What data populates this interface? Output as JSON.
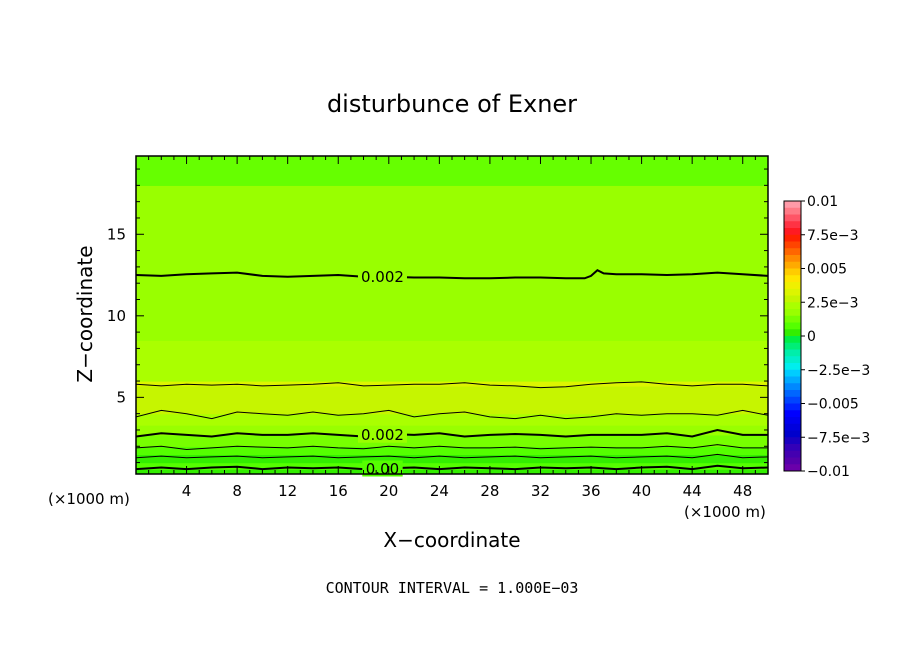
{
  "chart_data": {
    "type": "heatmap",
    "title": "disturbunce of Exner",
    "xlabel": "X−coordinate",
    "ylabel": "Z−coordinate",
    "x_unit": "(×1000 m)",
    "y_unit": "(×1000 m)",
    "xlim": [
      0,
      50
    ],
    "ylim": [
      0.3,
      19.8
    ],
    "x_ticks": [
      4,
      8,
      12,
      16,
      20,
      24,
      28,
      32,
      36,
      40,
      44,
      48
    ],
    "x_tick_labels": [
      "4",
      "8",
      "12",
      "16",
      "20",
      "24",
      "28",
      "32",
      "36",
      "40",
      "44",
      "48"
    ],
    "y_ticks": [
      5,
      10,
      15
    ],
    "y_tick_labels": [
      "5",
      "10",
      "15"
    ],
    "footnote": "CONTOUR INTERVAL = 1.000E−03",
    "colorbar": {
      "min": -0.01,
      "max": 0.01,
      "labels": [
        {
          "value": 0.01,
          "text": "0.01"
        },
        {
          "value": 0.0075,
          "text": "7.5e−3"
        },
        {
          "value": 0.005,
          "text": "0.005"
        },
        {
          "value": 0.0025,
          "text": "2.5e−3"
        },
        {
          "value": 0,
          "text": "0"
        },
        {
          "value": -0.0025,
          "text": "−2.5e−3"
        },
        {
          "value": -0.005,
          "text": "−0.005"
        },
        {
          "value": -0.0075,
          "text": "−7.5e−3"
        },
        {
          "value": -0.01,
          "text": "−0.01"
        }
      ],
      "levels": [
        {
          "from": 0.0095,
          "to": 0.01,
          "color": "#ff9aa8"
        },
        {
          "from": 0.009,
          "to": 0.0095,
          "color": "#ff7a86"
        },
        {
          "from": 0.0085,
          "to": 0.009,
          "color": "#ff5566"
        },
        {
          "from": 0.008,
          "to": 0.0085,
          "color": "#ff3344"
        },
        {
          "from": 0.0075,
          "to": 0.008,
          "color": "#ff1a22"
        },
        {
          "from": 0.007,
          "to": 0.0075,
          "color": "#ff2200"
        },
        {
          "from": 0.0065,
          "to": 0.007,
          "color": "#ff4400"
        },
        {
          "from": 0.006,
          "to": 0.0065,
          "color": "#ff6600"
        },
        {
          "from": 0.0055,
          "to": 0.006,
          "color": "#ff8a00"
        },
        {
          "from": 0.005,
          "to": 0.0055,
          "color": "#ffaa00"
        },
        {
          "from": 0.0045,
          "to": 0.005,
          "color": "#ffcc00"
        },
        {
          "from": 0.004,
          "to": 0.0045,
          "color": "#ffe600"
        },
        {
          "from": 0.0035,
          "to": 0.004,
          "color": "#f0f000"
        },
        {
          "from": 0.003,
          "to": 0.0035,
          "color": "#ddf500"
        },
        {
          "from": 0.0025,
          "to": 0.003,
          "color": "#c6f500"
        },
        {
          "from": 0.002,
          "to": 0.0025,
          "color": "#aaff00"
        },
        {
          "from": 0.0015,
          "to": 0.002,
          "color": "#99ff00"
        },
        {
          "from": 0.001,
          "to": 0.0015,
          "color": "#77ff00"
        },
        {
          "from": 0.0005,
          "to": 0.001,
          "color": "#55ff00"
        },
        {
          "from": 0,
          "to": 0.0005,
          "color": "#33ee00"
        },
        {
          "from": -0.0005,
          "to": 0,
          "color": "#00ee44"
        },
        {
          "from": -0.001,
          "to": -0.0005,
          "color": "#00ee77"
        },
        {
          "from": -0.0015,
          "to": -0.001,
          "color": "#00eeaa"
        },
        {
          "from": -0.002,
          "to": -0.0015,
          "color": "#00eecc"
        },
        {
          "from": -0.0025,
          "to": -0.002,
          "color": "#00eeee"
        },
        {
          "from": -0.003,
          "to": -0.0025,
          "color": "#00ccff"
        },
        {
          "from": -0.0035,
          "to": -0.003,
          "color": "#00aaff"
        },
        {
          "from": -0.004,
          "to": -0.0035,
          "color": "#0088ff"
        },
        {
          "from": -0.0045,
          "to": -0.004,
          "color": "#0066ff"
        },
        {
          "from": -0.005,
          "to": -0.0045,
          "color": "#0044ff"
        },
        {
          "from": -0.0055,
          "to": -0.005,
          "color": "#0022ff"
        },
        {
          "from": -0.006,
          "to": -0.0055,
          "color": "#0000ff"
        },
        {
          "from": -0.0065,
          "to": -0.006,
          "color": "#0000ee"
        },
        {
          "from": -0.007,
          "to": -0.0065,
          "color": "#0000dd"
        },
        {
          "from": -0.0075,
          "to": -0.007,
          "color": "#0000cc"
        },
        {
          "from": -0.008,
          "to": -0.0075,
          "color": "#1a00c0"
        },
        {
          "from": -0.0085,
          "to": -0.008,
          "color": "#3300b8"
        },
        {
          "from": -0.009,
          "to": -0.0085,
          "color": "#4400b0"
        },
        {
          "from": -0.0095,
          "to": -0.009,
          "color": "#5500aa"
        },
        {
          "from": -0.01,
          "to": -0.0095,
          "color": "#6a00aa"
        }
      ]
    },
    "bands": [
      {
        "z_from": 0.3,
        "z_to": 0.6,
        "color": "#33ee00"
      },
      {
        "z_from": 0.6,
        "z_to": 1.0,
        "color": "#55ff00"
      },
      {
        "z_from": 1.0,
        "z_to": 1.5,
        "color": "#33ee00"
      },
      {
        "z_from": 1.5,
        "z_to": 2.0,
        "color": "#55ff00"
      },
      {
        "z_from": 2.0,
        "z_to": 2.7,
        "color": "#77ff00"
      },
      {
        "z_from": 2.7,
        "z_to": 3.3,
        "color": "#99ff00"
      },
      {
        "z_from": 3.3,
        "z_to": 4.0,
        "color": "#aaff00"
      },
      {
        "z_from": 4.0,
        "z_to": 5.7,
        "color": "#c6f500"
      },
      {
        "z_from": 5.7,
        "z_to": 6.0,
        "color": "#ddf500"
      },
      {
        "z_from": 6.0,
        "z_to": 8.5,
        "color": "#aaff00"
      },
      {
        "z_from": 8.5,
        "z_to": 18.0,
        "color": "#99ff00"
      },
      {
        "z_from": 18.0,
        "z_to": 19.8,
        "color": "#66ff00"
      }
    ],
    "contours": [
      {
        "value": 0.002,
        "thick": true,
        "label": "0.002",
        "label_x": 19.5,
        "x": [
          0,
          2,
          4,
          6,
          8,
          10,
          12,
          14,
          16,
          18,
          20,
          22,
          24,
          26,
          28,
          30,
          32,
          34,
          35.5,
          36,
          36.5,
          37,
          38,
          40,
          42,
          44,
          46,
          48,
          50
        ],
        "z": [
          12.5,
          12.45,
          12.55,
          12.6,
          12.65,
          12.45,
          12.4,
          12.45,
          12.5,
          12.4,
          12.4,
          12.35,
          12.35,
          12.3,
          12.3,
          12.35,
          12.35,
          12.3,
          12.3,
          12.45,
          12.8,
          12.6,
          12.55,
          12.55,
          12.5,
          12.55,
          12.65,
          12.55,
          12.45
        ]
      },
      {
        "value": 0.0025,
        "thick": false,
        "label": "",
        "label_x": null,
        "x": [
          0,
          2,
          4,
          6,
          8,
          10,
          12,
          14,
          16,
          18,
          20,
          22,
          24,
          26,
          28,
          30,
          32,
          34,
          36,
          38,
          40,
          42,
          44,
          46,
          48,
          50
        ],
        "z": [
          5.8,
          5.7,
          5.8,
          5.75,
          5.8,
          5.7,
          5.75,
          5.8,
          5.9,
          5.7,
          5.75,
          5.8,
          5.8,
          5.9,
          5.75,
          5.7,
          5.6,
          5.65,
          5.8,
          5.9,
          5.95,
          5.8,
          5.7,
          5.8,
          5.8,
          5.7
        ]
      },
      {
        "value": 0.0025,
        "thick": false,
        "label": "",
        "label_x": null,
        "x": [
          0,
          2,
          4,
          6,
          8,
          10,
          12,
          14,
          16,
          18,
          20,
          22,
          24,
          26,
          28,
          30,
          32,
          34,
          36,
          38,
          40,
          42,
          44,
          46,
          48,
          50
        ],
        "z": [
          3.8,
          4.2,
          4.0,
          3.7,
          4.1,
          4.0,
          3.9,
          4.1,
          3.9,
          4.0,
          4.2,
          3.8,
          4.0,
          4.1,
          3.8,
          3.7,
          3.9,
          3.7,
          3.8,
          4.0,
          3.9,
          4.0,
          4.0,
          3.9,
          4.2,
          3.9
        ]
      },
      {
        "value": 0.002,
        "thick": true,
        "label": "0.002",
        "label_x": 19.5,
        "x": [
          0,
          2,
          4,
          6,
          8,
          10,
          12,
          14,
          16,
          18,
          20,
          22,
          24,
          26,
          28,
          30,
          32,
          34,
          36,
          38,
          40,
          42,
          44,
          46,
          48,
          50
        ],
        "z": [
          2.6,
          2.8,
          2.7,
          2.6,
          2.8,
          2.7,
          2.7,
          2.8,
          2.7,
          2.6,
          2.75,
          2.7,
          2.8,
          2.6,
          2.7,
          2.75,
          2.7,
          2.6,
          2.7,
          2.7,
          2.7,
          2.8,
          2.6,
          3.0,
          2.7,
          2.7
        ]
      },
      {
        "value": 0.0015,
        "thick": false,
        "label": "",
        "label_x": null,
        "x": [
          0,
          2,
          4,
          6,
          8,
          10,
          12,
          14,
          16,
          18,
          20,
          22,
          24,
          26,
          28,
          30,
          32,
          34,
          36,
          38,
          40,
          42,
          44,
          46,
          48,
          50
        ],
        "z": [
          1.9,
          2.0,
          1.8,
          1.9,
          2.0,
          1.95,
          1.9,
          2.0,
          1.9,
          1.85,
          2.0,
          1.9,
          2.0,
          1.9,
          1.9,
          1.95,
          1.85,
          1.9,
          1.95,
          1.9,
          1.9,
          2.0,
          1.9,
          2.1,
          1.9,
          1.9
        ]
      },
      {
        "value": 0.001,
        "thick": false,
        "label": "",
        "label_x": null,
        "x": [
          0,
          2,
          4,
          6,
          8,
          10,
          12,
          14,
          16,
          18,
          20,
          22,
          24,
          26,
          28,
          30,
          32,
          34,
          36,
          38,
          40,
          42,
          44,
          46,
          48,
          50
        ],
        "z": [
          1.3,
          1.4,
          1.3,
          1.35,
          1.4,
          1.3,
          1.35,
          1.4,
          1.3,
          1.35,
          1.4,
          1.3,
          1.4,
          1.3,
          1.35,
          1.4,
          1.3,
          1.35,
          1.4,
          1.3,
          1.35,
          1.4,
          1.3,
          1.5,
          1.3,
          1.35
        ]
      },
      {
        "value": 0.0,
        "thick": true,
        "label": "0.00",
        "label_x": 19.5,
        "x": [
          0,
          2,
          4,
          6,
          8,
          10,
          12,
          14,
          16,
          18,
          20,
          22,
          24,
          26,
          28,
          30,
          32,
          34,
          36,
          38,
          40,
          42,
          44,
          46,
          48,
          50
        ],
        "z": [
          0.6,
          0.7,
          0.6,
          0.7,
          0.75,
          0.6,
          0.7,
          0.65,
          0.7,
          0.6,
          0.65,
          0.7,
          0.6,
          0.7,
          0.65,
          0.6,
          0.7,
          0.65,
          0.7,
          0.6,
          0.7,
          0.75,
          0.6,
          0.8,
          0.65,
          0.7
        ]
      }
    ]
  }
}
